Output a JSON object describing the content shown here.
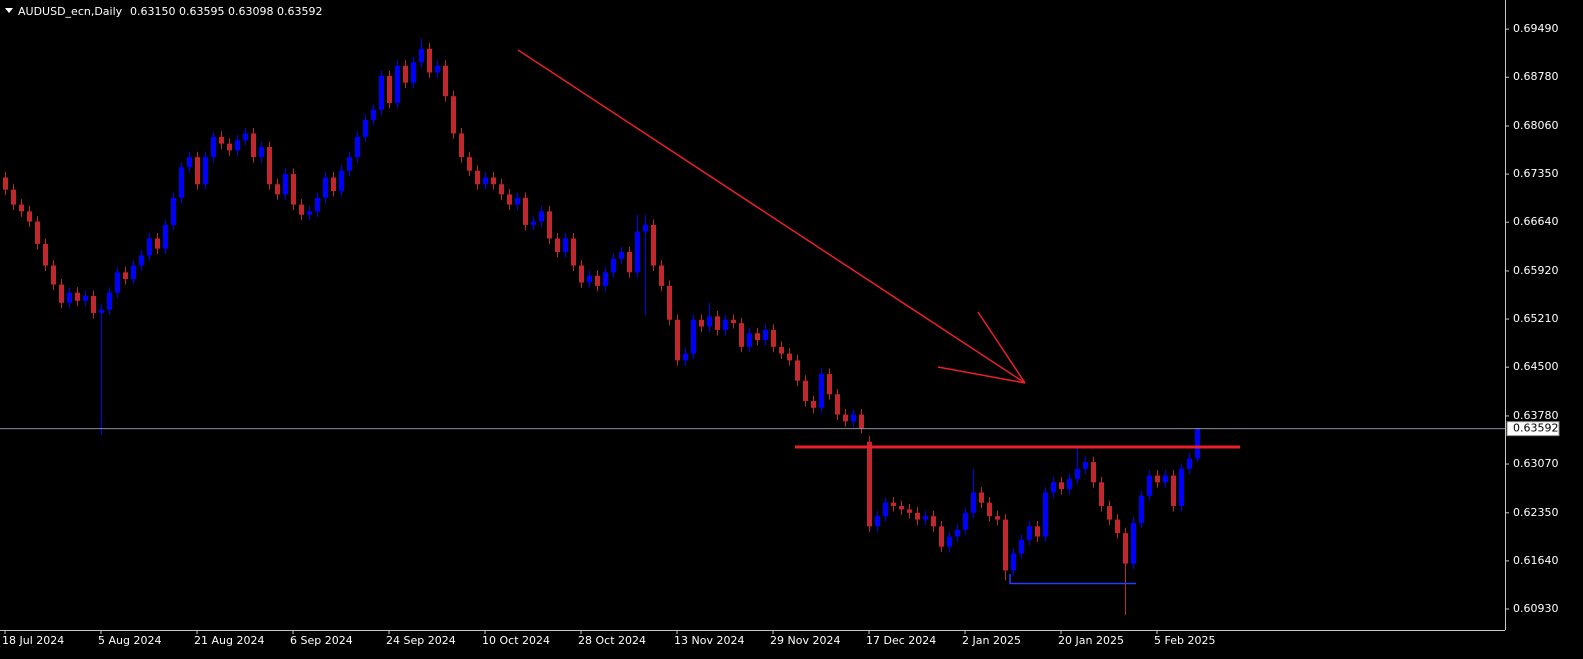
{
  "chart_data": {
    "type": "candlestick",
    "title": "AUDUSD_ecn,Daily",
    "ohlc_labels": [
      "0.63150",
      "0.63595",
      "0.63098",
      "0.63592"
    ],
    "last_price_label": "0.63592",
    "up_color": "#0000ff",
    "down_color": "#c0282d",
    "ylim": [
      0.6062,
      0.6992
    ],
    "yticks": [
      {
        "value": 0.6949,
        "label": "0.69490"
      },
      {
        "value": 0.6878,
        "label": "0.68780"
      },
      {
        "value": 0.6806,
        "label": "0.68060"
      },
      {
        "value": 0.6735,
        "label": "0.67350"
      },
      {
        "value": 0.6664,
        "label": "0.66640"
      },
      {
        "value": 0.6592,
        "label": "0.65920"
      },
      {
        "value": 0.6521,
        "label": "0.65210"
      },
      {
        "value": 0.645,
        "label": "0.64500"
      },
      {
        "value": 0.6378,
        "label": "0.63780"
      },
      {
        "value": 0.6307,
        "label": "0.63070"
      },
      {
        "value": 0.6235,
        "label": "0.62350"
      },
      {
        "value": 0.6164,
        "label": "0.61640"
      },
      {
        "value": 0.6093,
        "label": "0.60930"
      }
    ],
    "categories": [
      "18 Jul 2024",
      null,
      null,
      null,
      null,
      null,
      null,
      null,
      null,
      null,
      null,
      null,
      "5 Aug 2024",
      null,
      null,
      null,
      null,
      null,
      null,
      null,
      null,
      null,
      null,
      null,
      "21 Aug 2024",
      null,
      null,
      null,
      null,
      null,
      null,
      null,
      null,
      null,
      null,
      null,
      "6 Sep 2024",
      null,
      null,
      null,
      null,
      null,
      null,
      null,
      null,
      null,
      null,
      null,
      "24 Sep 2024",
      null,
      null,
      null,
      null,
      null,
      null,
      null,
      null,
      null,
      null,
      null,
      "10 Oct 2024",
      null,
      null,
      null,
      null,
      null,
      null,
      null,
      null,
      null,
      null,
      null,
      "28 Oct 2024",
      null,
      null,
      null,
      null,
      null,
      null,
      null,
      null,
      null,
      null,
      null,
      "13 Nov 2024",
      null,
      null,
      null,
      null,
      null,
      null,
      null,
      null,
      null,
      null,
      null,
      "29 Nov 2024",
      null,
      null,
      null,
      null,
      null,
      null,
      null,
      null,
      null,
      null,
      null,
      "17 Dec 2024",
      null,
      null,
      null,
      null,
      null,
      null,
      null,
      null,
      null,
      null,
      null,
      "2 Jan 2025",
      null,
      null,
      null,
      null,
      null,
      null,
      null,
      null,
      null,
      null,
      null,
      "20 Jan 2025",
      null,
      null,
      null,
      null,
      null,
      null,
      null,
      null,
      null,
      null,
      null,
      "5 Feb 2025",
      null,
      null,
      null,
      null,
      null
    ],
    "open": [
      0.673,
      0.6712,
      0.669,
      0.668,
      0.6665,
      0.6632,
      0.66,
      0.6572,
      0.6545,
      0.656,
      0.6548,
      0.6555,
      0.653,
      0.6535,
      0.656,
      0.659,
      0.658,
      0.66,
      0.6615,
      0.664,
      0.6625,
      0.666,
      0.67,
      0.6745,
      0.676,
      0.672,
      0.676,
      0.679,
      0.678,
      0.677,
      0.6785,
      0.6795,
      0.676,
      0.6775,
      0.672,
      0.6705,
      0.6735,
      0.669,
      0.6675,
      0.668,
      0.67,
      0.673,
      0.671,
      0.674,
      0.676,
      0.679,
      0.6815,
      0.683,
      0.688,
      0.684,
      0.6895,
      0.687,
      0.69,
      0.692,
      0.6885,
      0.6895,
      0.685,
      0.6795,
      0.676,
      0.674,
      0.672,
      0.673,
      0.672,
      0.6705,
      0.669,
      0.67,
      0.666,
      0.6665,
      0.668,
      0.664,
      0.662,
      0.664,
      0.66,
      0.6575,
      0.6585,
      0.657,
      0.659,
      0.661,
      0.662,
      0.659,
      0.665,
      0.666,
      0.66,
      0.657,
      0.652,
      0.646,
      0.647,
      0.652,
      0.651,
      0.6525,
      0.6505,
      0.652,
      0.6515,
      0.648,
      0.65,
      0.649,
      0.6505,
      0.648,
      0.647,
      0.646,
      0.643,
      0.64,
      0.639,
      0.644,
      0.641,
      0.638,
      0.637,
      0.638,
      0.634,
      0.6215,
      0.623,
      0.625,
      0.6245,
      0.624,
      0.6235,
      0.6225,
      0.623,
      0.6215,
      0.6185,
      0.62,
      0.621,
      0.6235,
      0.6265,
      0.625,
      0.623,
      0.6225,
      0.615,
      0.6175,
      0.6195,
      0.6215,
      0.62,
      0.6265,
      0.628,
      0.627,
      0.6285,
      0.63,
      0.631,
      0.628,
      0.6245,
      0.6225,
      0.6205,
      0.616,
      0.622,
      0.626,
      0.629,
      0.628,
      0.629,
      0.6245,
      0.63,
      0.6315
    ],
    "high": [
      0.6738,
      0.672,
      0.6698,
      0.6688,
      0.6673,
      0.664,
      0.6608,
      0.658,
      0.6568,
      0.6568,
      0.6563,
      0.6563,
      0.6543,
      0.6568,
      0.6598,
      0.6598,
      0.6608,
      0.6623,
      0.6648,
      0.6648,
      0.6668,
      0.6708,
      0.6753,
      0.6768,
      0.6768,
      0.6768,
      0.6798,
      0.6798,
      0.6788,
      0.6793,
      0.6803,
      0.6803,
      0.6783,
      0.6783,
      0.6728,
      0.6743,
      0.6743,
      0.6698,
      0.6688,
      0.6708,
      0.6738,
      0.6738,
      0.6748,
      0.6768,
      0.6798,
      0.6823,
      0.6838,
      0.6888,
      0.6888,
      0.6903,
      0.6903,
      0.6908,
      0.6935,
      0.6928,
      0.6903,
      0.6903,
      0.6858,
      0.6803,
      0.6768,
      0.6748,
      0.6738,
      0.6738,
      0.6728,
      0.6713,
      0.6708,
      0.6708,
      0.6673,
      0.6688,
      0.6688,
      0.6648,
      0.6648,
      0.6648,
      0.6608,
      0.6593,
      0.6593,
      0.6598,
      0.6618,
      0.6628,
      0.6628,
      0.6675,
      0.6675,
      0.6668,
      0.6608,
      0.6578,
      0.6528,
      0.6478,
      0.6528,
      0.6528,
      0.6545,
      0.6533,
      0.6528,
      0.6528,
      0.6523,
      0.6508,
      0.6508,
      0.6513,
      0.6513,
      0.6488,
      0.6478,
      0.6468,
      0.6438,
      0.6408,
      0.6448,
      0.6448,
      0.6418,
      0.6388,
      0.6388,
      0.6388,
      0.6348,
      0.6238,
      0.6258,
      0.6258,
      0.6253,
      0.6248,
      0.6243,
      0.6238,
      0.6238,
      0.6223,
      0.6208,
      0.6218,
      0.6243,
      0.63,
      0.6273,
      0.6258,
      0.6238,
      0.6233,
      0.6183,
      0.6203,
      0.6223,
      0.6223,
      0.6273,
      0.6288,
      0.6288,
      0.6293,
      0.633,
      0.6318,
      0.6318,
      0.6288,
      0.6253,
      0.6233,
      0.6213,
      0.6228,
      0.6268,
      0.6298,
      0.6298,
      0.6298,
      0.6298,
      0.6308,
      0.6323,
      0.63595
    ],
    "low": [
      0.6704,
      0.6682,
      0.6672,
      0.6657,
      0.6624,
      0.6592,
      0.6564,
      0.6537,
      0.6537,
      0.654,
      0.654,
      0.6522,
      0.635,
      0.6527,
      0.6552,
      0.6572,
      0.6572,
      0.6592,
      0.6607,
      0.6617,
      0.6617,
      0.6652,
      0.6692,
      0.6737,
      0.6712,
      0.6712,
      0.6752,
      0.6772,
      0.6762,
      0.6762,
      0.6777,
      0.6752,
      0.6752,
      0.6712,
      0.6697,
      0.6697,
      0.6682,
      0.6667,
      0.6667,
      0.6672,
      0.6692,
      0.6702,
      0.6702,
      0.6732,
      0.6752,
      0.6782,
      0.6807,
      0.6822,
      0.6832,
      0.6832,
      0.6862,
      0.6862,
      0.6892,
      0.6877,
      0.6877,
      0.6842,
      0.6787,
      0.6752,
      0.6732,
      0.6712,
      0.6712,
      0.6712,
      0.6697,
      0.6682,
      0.6682,
      0.6652,
      0.6652,
      0.6657,
      0.6632,
      0.6612,
      0.6612,
      0.6592,
      0.6567,
      0.6567,
      0.6562,
      0.6562,
      0.6582,
      0.6602,
      0.6582,
      0.6582,
      0.6527,
      0.6592,
      0.6562,
      0.6512,
      0.6452,
      0.6452,
      0.6462,
      0.6502,
      0.6502,
      0.6497,
      0.6497,
      0.6507,
      0.6472,
      0.6472,
      0.6482,
      0.6482,
      0.6472,
      0.6462,
      0.6452,
      0.6422,
      0.6392,
      0.6382,
      0.6382,
      0.6402,
      0.6372,
      0.6362,
      0.6362,
      0.6352,
      0.6207,
      0.6207,
      0.6222,
      0.6237,
      0.6232,
      0.6227,
      0.6217,
      0.6217,
      0.6207,
      0.6177,
      0.6177,
      0.6192,
      0.6202,
      0.6227,
      0.6242,
      0.6222,
      0.6217,
      0.6135,
      0.6142,
      0.6167,
      0.6187,
      0.6192,
      0.6192,
      0.6257,
      0.6262,
      0.6262,
      0.6277,
      0.6292,
      0.6272,
      0.6237,
      0.6217,
      0.6197,
      0.6084,
      0.6152,
      0.6212,
      0.6252,
      0.6272,
      0.6272,
      0.6237,
      0.6237,
      0.6292,
      0.63098
    ],
    "close": [
      0.6712,
      0.669,
      0.668,
      0.6665,
      0.6632,
      0.66,
      0.6572,
      0.6545,
      0.656,
      0.6548,
      0.6555,
      0.653,
      0.6535,
      0.656,
      0.659,
      0.658,
      0.66,
      0.6615,
      0.664,
      0.6625,
      0.666,
      0.67,
      0.6745,
      0.676,
      0.672,
      0.676,
      0.679,
      0.678,
      0.677,
      0.6785,
      0.6795,
      0.676,
      0.6775,
      0.672,
      0.6705,
      0.6735,
      0.669,
      0.6675,
      0.668,
      0.67,
      0.673,
      0.671,
      0.674,
      0.676,
      0.679,
      0.6815,
      0.683,
      0.688,
      0.684,
      0.6895,
      0.687,
      0.69,
      0.692,
      0.6885,
      0.6895,
      0.685,
      0.6795,
      0.676,
      0.674,
      0.672,
      0.673,
      0.672,
      0.6705,
      0.669,
      0.67,
      0.666,
      0.6665,
      0.668,
      0.664,
      0.662,
      0.664,
      0.66,
      0.6575,
      0.6585,
      0.657,
      0.659,
      0.661,
      0.662,
      0.659,
      0.665,
      0.666,
      0.66,
      0.657,
      0.652,
      0.646,
      0.647,
      0.652,
      0.651,
      0.6525,
      0.6505,
      0.652,
      0.6515,
      0.648,
      0.65,
      0.649,
      0.6505,
      0.648,
      0.647,
      0.646,
      0.643,
      0.64,
      0.639,
      0.644,
      0.641,
      0.638,
      0.637,
      0.638,
      0.636,
      0.6215,
      0.623,
      0.625,
      0.6245,
      0.624,
      0.6235,
      0.6225,
      0.623,
      0.6215,
      0.6185,
      0.62,
      0.621,
      0.6235,
      0.6265,
      0.625,
      0.623,
      0.6225,
      0.615,
      0.6175,
      0.6195,
      0.6215,
      0.62,
      0.6265,
      0.628,
      0.627,
      0.6285,
      0.63,
      0.631,
      0.628,
      0.6245,
      0.6225,
      0.6205,
      0.616,
      0.622,
      0.626,
      0.629,
      0.628,
      0.629,
      0.6245,
      0.63,
      0.6315,
      0.63592
    ]
  }
}
